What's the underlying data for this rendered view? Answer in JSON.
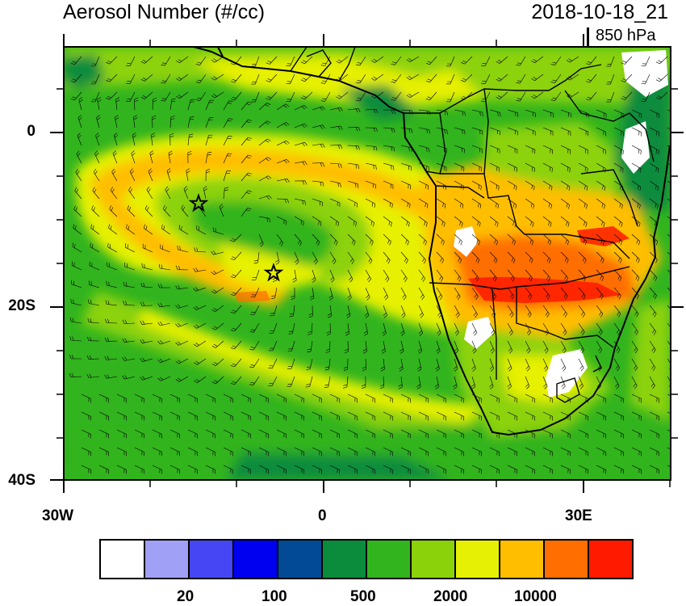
{
  "title": "Aerosol Number (#/cc)",
  "datetime": "2018-10-18_21",
  "level": "850 hPa",
  "y_axis": {
    "labels": [
      "0",
      "20S",
      "40S"
    ]
  },
  "x_axis": {
    "labels": [
      "30W",
      "0",
      "30E"
    ]
  },
  "colorbar": {
    "colors": [
      "#ffffff",
      "#a0a0f6",
      "#4646f4",
      "#0000f0",
      "#034a96",
      "#0a8c3c",
      "#32b41e",
      "#8cd20a",
      "#e6f004",
      "#ffbe00",
      "#ff6e00",
      "#ff1a00"
    ],
    "labels": [
      "20",
      "100",
      "500",
      "2000",
      "10000"
    ]
  },
  "markers": {
    "count": 2,
    "icon": "star-icon"
  }
}
